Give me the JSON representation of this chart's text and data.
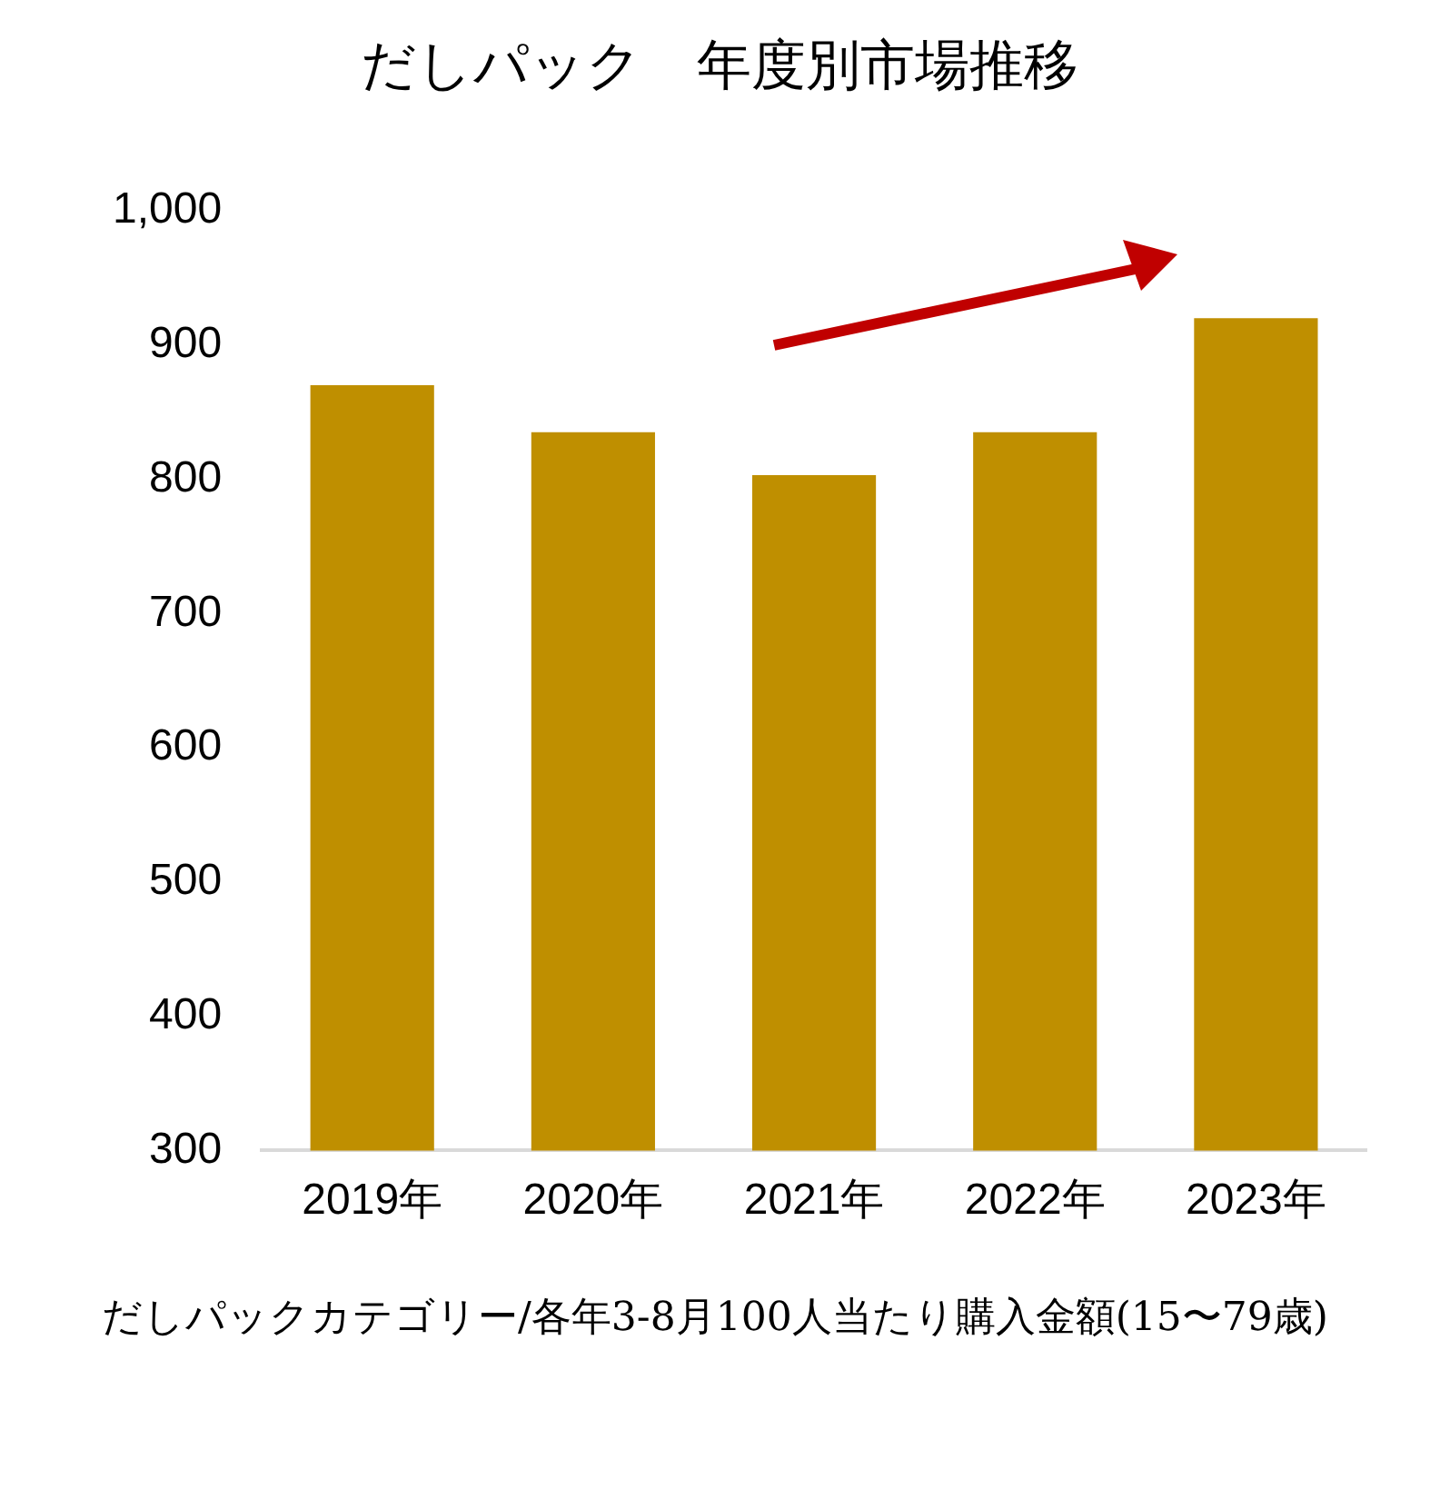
{
  "chart_data": {
    "type": "bar",
    "title": "だしパック　年度別市場推移",
    "categories": [
      "2019年",
      "2020年",
      "2021年",
      "2022年",
      "2023年"
    ],
    "values": [
      870,
      835,
      803,
      835,
      920
    ],
    "color": "#bf8f00",
    "ylim": [
      300,
      1000
    ],
    "yticks": [
      300,
      400,
      500,
      600,
      700,
      800,
      900,
      {
        "value": 1000,
        "label": "1,000"
      }
    ],
    "grid": false,
    "legend": false,
    "annotations": [
      "だしパックカテゴリー/各年3-8月100人当たり購入金額(15〜79歳)"
    ]
  }
}
